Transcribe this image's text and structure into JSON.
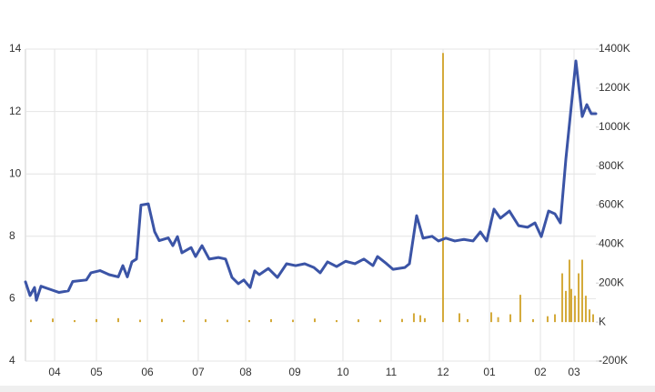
{
  "chart_data": {
    "type": "line",
    "xlim": [
      0,
      52.25
    ],
    "xticks": [
      {
        "value": 2.67,
        "label": "04"
      },
      {
        "value": 6.5,
        "label": "05"
      },
      {
        "value": 11.17,
        "label": "06"
      },
      {
        "value": 15.83,
        "label": "07"
      },
      {
        "value": 20.17,
        "label": "08"
      },
      {
        "value": 24.67,
        "label": "09"
      },
      {
        "value": 29.08,
        "label": "10"
      },
      {
        "value": 33.5,
        "label": "11"
      },
      {
        "value": 38.25,
        "label": "12"
      },
      {
        "value": 42.5,
        "label": "01"
      },
      {
        "value": 47.17,
        "label": "02"
      },
      {
        "value": 50.25,
        "label": "03"
      }
    ],
    "ylim": [
      4,
      14
    ],
    "yticks": [
      4,
      6,
      8,
      10,
      12,
      14
    ],
    "y2lim": [
      -200000,
      1400000
    ],
    "y2ticks": [
      {
        "value": -200000,
        "label": "-200K"
      },
      {
        "value": 0,
        "label": "K"
      },
      {
        "value": 200000,
        "label": "200K"
      },
      {
        "value": 400000,
        "label": "400K"
      },
      {
        "value": 600000,
        "label": "600K"
      },
      {
        "value": 800000,
        "label": "800K"
      },
      {
        "value": 1000000,
        "label": "1000K"
      },
      {
        "value": 1200000,
        "label": "1200K"
      },
      {
        "value": 1400000,
        "label": "1400K"
      }
    ],
    "grid": true,
    "series": [
      {
        "type": "line",
        "color": "#3b54a6",
        "x": [
          0,
          0.42,
          0.83,
          1,
          1.42,
          2.25,
          3.08,
          3.92,
          4.33,
          5.58,
          6,
          6.83,
          7.67,
          8.5,
          8.92,
          9.33,
          9.75,
          10.17,
          10.58,
          11.25,
          11.83,
          12.25,
          13.08,
          13.5,
          13.92,
          14.33,
          15.17,
          15.58,
          16.17,
          16.83,
          17.67,
          18.33,
          18.92,
          19.5,
          20,
          20.58,
          21,
          21.42,
          22.25,
          23.08,
          23.92,
          24.75,
          25.58,
          26.42,
          27,
          27.67,
          28.5,
          29.33,
          30.17,
          31,
          31.83,
          32.25,
          33.08,
          33.67,
          34.75,
          35.17,
          35.83,
          36.42,
          37.25,
          37.83,
          38.5,
          39.33,
          40.17,
          41,
          41.67,
          42.25,
          42.92,
          43.5,
          44.33,
          45.17,
          46,
          46.67,
          47.25,
          47.92,
          48.5,
          49,
          49.5,
          50.42,
          51,
          51.42,
          51.83,
          52.25
        ],
        "values": [
          6.54,
          6.1,
          6.36,
          5.95,
          6.4,
          6.3,
          6.2,
          6.25,
          6.55,
          6.6,
          6.83,
          6.9,
          6.77,
          6.7,
          7.06,
          6.7,
          7.18,
          7.27,
          9.0,
          9.04,
          8.15,
          7.86,
          7.95,
          7.7,
          7.99,
          7.47,
          7.64,
          7.35,
          7.7,
          7.27,
          7.32,
          7.27,
          6.68,
          6.48,
          6.6,
          6.36,
          6.89,
          6.77,
          6.97,
          6.68,
          7.12,
          7.06,
          7.12,
          7.0,
          6.83,
          7.18,
          7.03,
          7.2,
          7.12,
          7.27,
          7.06,
          7.35,
          7.12,
          6.94,
          7.0,
          7.12,
          8.66,
          7.94,
          8.0,
          7.85,
          7.94,
          7.85,
          7.9,
          7.85,
          8.14,
          7.85,
          8.87,
          8.58,
          8.81,
          8.34,
          8.29,
          8.43,
          7.99,
          8.81,
          8.72,
          8.43,
          10.47,
          13.62,
          11.84,
          12.22,
          11.93,
          11.93
        ]
      },
      {
        "type": "bar",
        "axis": "y2",
        "color": "#d4aa3a",
        "x": [
          0.5,
          2.5,
          4.5,
          6.5,
          8.5,
          10.5,
          12.5,
          14.5,
          16.5,
          18.5,
          20.5,
          22.5,
          24.5,
          26.5,
          28.5,
          30.5,
          32.5,
          34.5,
          35.58,
          36.17,
          36.58,
          38.25,
          39.75,
          40.5,
          42.67,
          43.3,
          44.42,
          45.33,
          46.5,
          47.83,
          48.5,
          49.17,
          49.5,
          49.83,
          50,
          50.33,
          50.67,
          51,
          51.33,
          51.67,
          52
        ],
        "values": [
          12000,
          18000,
          10000,
          15000,
          20000,
          12000,
          16000,
          10000,
          14000,
          12000,
          10000,
          15000,
          12000,
          18000,
          10000,
          14000,
          12000,
          16000,
          45000,
          35000,
          20000,
          1380000,
          45000,
          15000,
          50000,
          25000,
          40000,
          140000,
          15000,
          30000,
          40000,
          250000,
          160000,
          320000,
          170000,
          135000,
          250000,
          320000,
          135000,
          65000,
          40000
        ]
      }
    ]
  }
}
